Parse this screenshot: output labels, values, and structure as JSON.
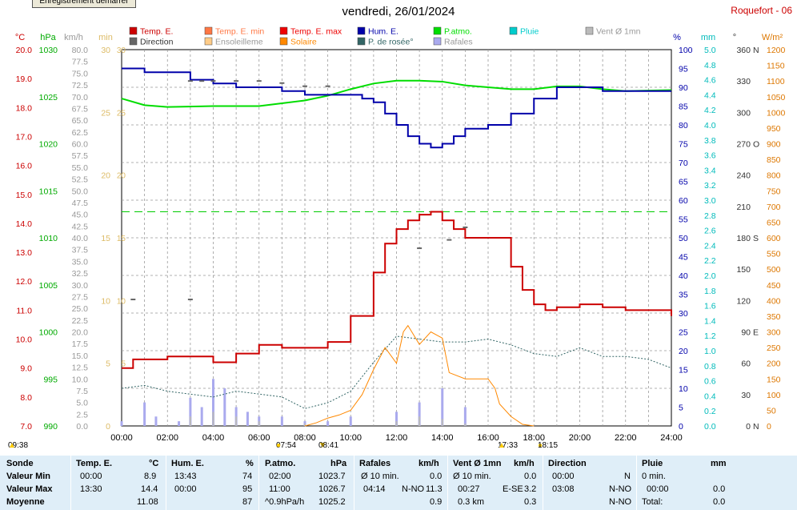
{
  "button_label": "Enregistrement démarrer",
  "title": "vendredi, 26/01/2024",
  "station": "Roquefort - 06",
  "legend": [
    {
      "label": "Temp. E.",
      "color": "#cc0000"
    },
    {
      "label": "Temp. E. min",
      "color": "#ff7744"
    },
    {
      "label": "Temp. E. max",
      "color": "#ee0000"
    },
    {
      "label": "Hum. E.",
      "color": "#0000aa"
    },
    {
      "label": "P.atmo.",
      "color": "#00dd00"
    },
    {
      "label": "Pluie",
      "color": "#00cccc"
    },
    {
      "label": "Vent Ø 1mn",
      "color": "#bbbbbb"
    },
    {
      "label": "Direction",
      "color": "#666666"
    },
    {
      "label": "Ensoleilleme",
      "color": "#ffcc88"
    },
    {
      "label": "Solaire",
      "color": "#ff8800"
    },
    {
      "label": "P. de rosée°",
      "color": "#336666"
    },
    {
      "label": "Rafales",
      "color": "#aaaaee"
    }
  ],
  "axis_units": {
    "temp": "°C",
    "hpa": "hPa",
    "kmh": "km/h",
    "min": "min",
    "pct": "%",
    "mm": "mm",
    "deg": "°",
    "wm2": "W/m²"
  },
  "chart_data": {
    "type": "line",
    "x_axis": {
      "range": [
        0,
        24
      ],
      "ticks": [
        "00:00",
        "02:00",
        "04:00",
        "06:00",
        "08:00",
        "10:00",
        "12:00",
        "14:00",
        "16:00",
        "18:00",
        "20:00",
        "22:00",
        "24:00"
      ]
    },
    "y_axes": {
      "temp_c": [
        7,
        20
      ],
      "pressure_hpa": [
        990,
        1030
      ],
      "wind_kmh": [
        0,
        80
      ],
      "sunshine_min": [
        0,
        30
      ],
      "humidity_pct": [
        0,
        100
      ],
      "rain_mm": [
        0,
        5
      ],
      "direction_deg": [
        0,
        360
      ],
      "solar_wm2": [
        0,
        1200
      ]
    },
    "direction_axis_labels": [
      "N",
      "E",
      "S",
      "O",
      "N"
    ],
    "series": [
      {
        "name": "Temp. E.",
        "axis": "temp_c",
        "points": [
          [
            0,
            9
          ],
          [
            0.5,
            9.3
          ],
          [
            2,
            9.4
          ],
          [
            4,
            9.2
          ],
          [
            5,
            9.5
          ],
          [
            6,
            9.8
          ],
          [
            7,
            9.7
          ],
          [
            8,
            9.7
          ],
          [
            9,
            9.9
          ],
          [
            10,
            10.8
          ],
          [
            11,
            12.3
          ],
          [
            11.5,
            13.3
          ],
          [
            12,
            13.8
          ],
          [
            12.5,
            14.1
          ],
          [
            13,
            14.3
          ],
          [
            13.5,
            14.4
          ],
          [
            14,
            14.1
          ],
          [
            14.5,
            13.8
          ],
          [
            15,
            13.5
          ],
          [
            16,
            13.5
          ],
          [
            17,
            12.5
          ],
          [
            17.5,
            11.7
          ],
          [
            18,
            11.2
          ],
          [
            18.5,
            11.0
          ],
          [
            19,
            11.1
          ],
          [
            20,
            11.2
          ],
          [
            21,
            11.1
          ],
          [
            22,
            11.0
          ],
          [
            23,
            11.0
          ],
          [
            24,
            10.8
          ]
        ]
      },
      {
        "name": "Hum. E.",
        "axis": "humidity_pct",
        "points": [
          [
            0,
            95
          ],
          [
            0.5,
            95
          ],
          [
            1,
            94
          ],
          [
            3,
            92
          ],
          [
            4,
            91
          ],
          [
            5,
            90
          ],
          [
            7,
            89
          ],
          [
            8,
            88
          ],
          [
            9,
            88
          ],
          [
            10,
            88
          ],
          [
            10.5,
            87
          ],
          [
            11,
            86
          ],
          [
            11.5,
            83
          ],
          [
            12,
            80
          ],
          [
            12.5,
            77
          ],
          [
            13,
            75
          ],
          [
            13.5,
            74
          ],
          [
            14,
            75
          ],
          [
            14.5,
            77
          ],
          [
            15,
            79
          ],
          [
            16,
            80
          ],
          [
            17,
            83
          ],
          [
            18,
            87
          ],
          [
            19,
            90
          ],
          [
            20,
            90
          ],
          [
            21,
            89
          ],
          [
            22,
            89
          ],
          [
            24,
            89
          ]
        ]
      },
      {
        "name": "P.atmo.",
        "axis": "pressure_hpa",
        "points": [
          [
            0,
            1024.8
          ],
          [
            1,
            1024.1
          ],
          [
            2,
            1023.9
          ],
          [
            4,
            1024.0
          ],
          [
            6,
            1024.0
          ],
          [
            7,
            1024.3
          ],
          [
            8,
            1024.6
          ],
          [
            9,
            1025.1
          ],
          [
            10,
            1025.8
          ],
          [
            11,
            1026.4
          ],
          [
            12,
            1026.7
          ],
          [
            13,
            1026.7
          ],
          [
            14,
            1026.6
          ],
          [
            15,
            1026.2
          ],
          [
            16,
            1026.0
          ],
          [
            17,
            1025.8
          ],
          [
            18,
            1025.8
          ],
          [
            19,
            1026.1
          ],
          [
            20,
            1026.1
          ],
          [
            21,
            1025.8
          ],
          [
            22,
            1025.6
          ],
          [
            24,
            1025.7
          ]
        ]
      },
      {
        "name": "P. de rosée°",
        "axis": "temp_c",
        "points": [
          [
            0,
            8.3
          ],
          [
            1,
            8.4
          ],
          [
            2,
            8.2
          ],
          [
            4,
            8.0
          ],
          [
            5,
            8.2
          ],
          [
            6,
            8.1
          ],
          [
            7,
            8.0
          ],
          [
            8,
            7.6
          ],
          [
            9,
            7.8
          ],
          [
            10,
            8.2
          ],
          [
            11,
            9.2
          ],
          [
            12,
            10.1
          ],
          [
            13,
            10.0
          ],
          [
            14,
            9.9
          ],
          [
            15,
            9.9
          ],
          [
            16,
            10.0
          ],
          [
            17,
            9.8
          ],
          [
            18,
            9.5
          ],
          [
            19,
            9.4
          ],
          [
            20,
            9.7
          ],
          [
            21,
            9.4
          ],
          [
            22,
            9.4
          ],
          [
            23,
            9.3
          ],
          [
            24,
            9.0
          ]
        ]
      },
      {
        "name": "Solaire",
        "axis": "solar_wm2",
        "points": [
          [
            8,
            0
          ],
          [
            8.5,
            10
          ],
          [
            9,
            25
          ],
          [
            9.5,
            35
          ],
          [
            10,
            50
          ],
          [
            10.5,
            100
          ],
          [
            11,
            180
          ],
          [
            11.5,
            250
          ],
          [
            12,
            200
          ],
          [
            12.3,
            300
          ],
          [
            12.5,
            320
          ],
          [
            13,
            260
          ],
          [
            13.5,
            300
          ],
          [
            14,
            280
          ],
          [
            14.3,
            170
          ],
          [
            15,
            150
          ],
          [
            16,
            150
          ],
          [
            16.3,
            120
          ],
          [
            16.5,
            70
          ],
          [
            17,
            30
          ],
          [
            17.5,
            5
          ],
          [
            18,
            0
          ]
        ]
      },
      {
        "name": "Rafales",
        "axis": "wind_kmh",
        "points": [
          [
            0,
            1
          ],
          [
            1,
            5
          ],
          [
            1.5,
            2
          ],
          [
            2.5,
            1
          ],
          [
            3,
            6
          ],
          [
            3.5,
            4
          ],
          [
            4,
            10
          ],
          [
            4.5,
            8
          ],
          [
            5,
            4
          ],
          [
            5.5,
            3
          ],
          [
            6,
            2
          ],
          [
            7,
            2
          ],
          [
            8,
            1
          ],
          [
            9,
            1
          ],
          [
            10,
            2
          ],
          [
            12,
            3
          ],
          [
            13,
            5
          ],
          [
            14,
            8
          ],
          [
            15,
            4
          ],
          [
            16,
            0
          ],
          [
            24,
            0
          ]
        ]
      },
      {
        "name": "Vent Ø 1mn",
        "axis": "wind_kmh",
        "points": [
          [
            0,
            0
          ],
          [
            3,
            2
          ],
          [
            4,
            3
          ],
          [
            5,
            2
          ],
          [
            6,
            1
          ],
          [
            8,
            0.5
          ],
          [
            12,
            1
          ],
          [
            13,
            2
          ],
          [
            14,
            1.5
          ],
          [
            15,
            0.5
          ],
          [
            16,
            0
          ],
          [
            24,
            0
          ]
        ]
      },
      {
        "name": "Temp. E. max level",
        "axis": "temp_c",
        "points": [
          [
            0,
            14.4
          ],
          [
            24,
            14.4
          ]
        ]
      }
    ],
    "direction_samples": [
      [
        3,
        330
      ],
      [
        3.5,
        330
      ],
      [
        4,
        330
      ],
      [
        5,
        330
      ],
      [
        6,
        330
      ],
      [
        7,
        328
      ],
      [
        8,
        325
      ],
      [
        9,
        325
      ],
      [
        0.5,
        121
      ],
      [
        3,
        121
      ],
      [
        13,
        170
      ],
      [
        14.3,
        178
      ],
      [
        15,
        190
      ]
    ]
  },
  "timeline_marks": [
    {
      "text": "09:38 ",
      "kind": "left"
    },
    {
      "text": "07:54",
      "kind": "sunrise"
    },
    {
      "text": "08:41",
      "kind": "sun"
    },
    {
      "text": "17:33",
      "kind": "sun"
    },
    {
      "text": "18:15",
      "kind": "sunset"
    }
  ],
  "stats": {
    "headers": {
      "sonde": "Sonde",
      "temp": "Temp. E.",
      "temp_u": "°C",
      "hum": "Hum. E.",
      "hum_u": "%",
      "patm": "P.atmo.",
      "patm_u": "hPa",
      "raf": "Rafales",
      "raf_u": "km/h",
      "vent": "Vent Ø 1mn",
      "vent_u": "km/h",
      "dir": "Direction",
      "pluie": "Pluie",
      "pluie_u": "mm"
    },
    "row_labels": [
      "Valeur Min",
      "Valeur Max",
      "Moyenne"
    ],
    "temp": [
      [
        "00:00",
        "8.9"
      ],
      [
        "13:30",
        "14.4"
      ],
      [
        "",
        "11.08"
      ]
    ],
    "hum": [
      [
        "13:43",
        "74"
      ],
      [
        "00:00",
        "95"
      ],
      [
        "",
        "87"
      ]
    ],
    "patm": [
      [
        "02:00",
        "1023.7"
      ],
      [
        "11:00",
        "1026.7"
      ],
      [
        "^0.9hPa/h",
        "1025.2"
      ]
    ],
    "raf": [
      [
        "Ø 10 min.",
        "",
        "0.0"
      ],
      [
        "04:14",
        "N-NO",
        "11.3"
      ],
      [
        "",
        "",
        "0.9"
      ]
    ],
    "vent": [
      [
        "Ø 10 min.",
        "",
        "0.0"
      ],
      [
        "00:27",
        "E-SE",
        "3.2"
      ],
      [
        "0.3 km",
        "",
        "0.3"
      ]
    ],
    "dir": [
      [
        "00:00",
        "N"
      ],
      [
        "03:08",
        "N-NO"
      ],
      [
        "",
        "N-NO"
      ]
    ],
    "pluie": [
      [
        "0 min.",
        ""
      ],
      [
        "00:00",
        "0.0"
      ],
      [
        "Total:",
        "0.0"
      ]
    ]
  }
}
